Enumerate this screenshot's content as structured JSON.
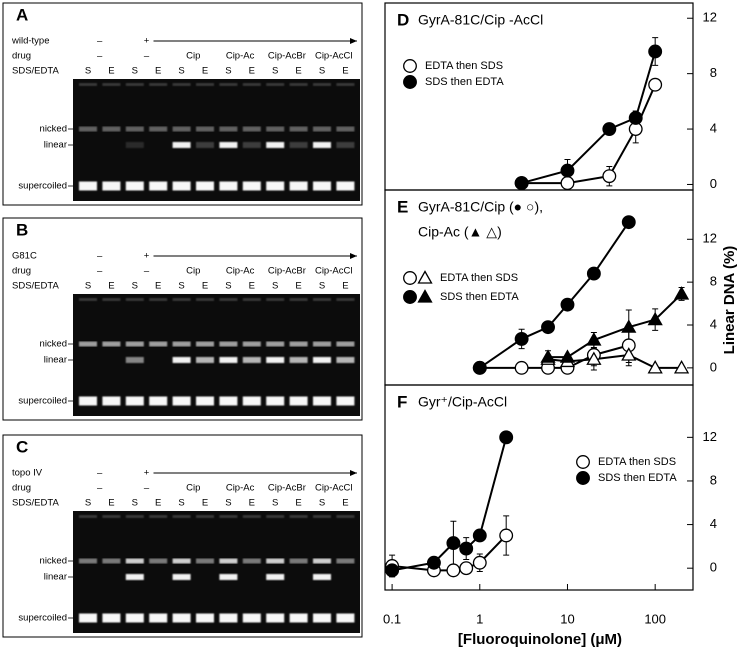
{
  "gels": [
    {
      "letter": "A",
      "enzyme": "wild-type",
      "enzyme_states": [
        "–",
        "+"
      ],
      "drug_label": "drug",
      "treatment_label": "SDS/EDTA",
      "drugs": [
        "–",
        "–",
        "Cip",
        "Cip-Ac",
        "Cip-AcBr",
        "Cip-AcCl"
      ],
      "lanes": [
        "S",
        "E",
        "S",
        "E",
        "S",
        "E",
        "S",
        "E",
        "S",
        "E",
        "S",
        "E"
      ],
      "bands": [
        "nicked",
        "linear",
        "supercoiled"
      ]
    },
    {
      "letter": "B",
      "enzyme": "G81C",
      "enzyme_states": [
        "–",
        "+"
      ],
      "drug_label": "drug",
      "treatment_label": "SDS/EDTA",
      "drugs": [
        "–",
        "–",
        "Cip",
        "Cip-Ac",
        "Cip-AcBr",
        "Cip-AcCl"
      ],
      "lanes": [
        "S",
        "E",
        "S",
        "E",
        "S",
        "E",
        "S",
        "E",
        "S",
        "E",
        "S",
        "E"
      ],
      "bands": [
        "nicked",
        "linear",
        "supercoiled"
      ]
    },
    {
      "letter": "C",
      "enzyme": "topo IV",
      "enzyme_states": [
        "–",
        "+"
      ],
      "drug_label": "drug",
      "treatment_label": "SDS/EDTA",
      "drugs": [
        "–",
        "–",
        "Cip",
        "Cip-Ac",
        "Cip-AcBr",
        "Cip-AcCl"
      ],
      "lanes": [
        "S",
        "E",
        "S",
        "E",
        "S",
        "E",
        "S",
        "E",
        "S",
        "E",
        "S",
        "E"
      ],
      "bands": [
        "nicked",
        "linear",
        "supercoiled"
      ]
    }
  ],
  "shared_axes": {
    "xlabel": "[Fluoroquinolone] (μM)",
    "ylabel": "Linear DNA (%)"
  },
  "chart_data": [
    {
      "type": "line",
      "panel": "D",
      "title": "GyrA-81C/Cip -AcCl",
      "xscale": "log",
      "xlim": [
        0.083,
        270
      ],
      "ylim": [
        -0.4,
        13.1
      ],
      "yticks": [
        0,
        4,
        8,
        12
      ],
      "legend": [
        "EDTA then SDS",
        "SDS then EDTA"
      ],
      "series": [
        {
          "legend": 0,
          "marker": "circle",
          "filled": false,
          "color": "#000000",
          "x": [
            3,
            10,
            30,
            60,
            100
          ],
          "values": [
            0.1,
            0.1,
            0.6,
            4.0,
            7.2
          ],
          "errors": [
            null,
            null,
            0.7,
            1.0,
            null
          ]
        },
        {
          "legend": 1,
          "marker": "circle",
          "filled": true,
          "color": "#000000",
          "x": [
            3,
            10,
            30,
            60,
            100
          ],
          "values": [
            0.1,
            1.0,
            4.0,
            4.8,
            9.6
          ],
          "errors": [
            null,
            0.8,
            null,
            0.5,
            1.0
          ]
        }
      ]
    },
    {
      "type": "line",
      "panel": "E",
      "title": [
        "GyrA-81C/Cip (● ○),",
        "Cip-Ac (▲ △)"
      ],
      "xscale": "log",
      "xlim": [
        0.083,
        270
      ],
      "ylim": [
        -1.6,
        16.6
      ],
      "yticks": [
        0,
        4,
        8,
        12
      ],
      "legend": [
        "EDTA then SDS",
        "SDS then EDTA"
      ],
      "series": [
        {
          "legend": 0,
          "marker": "circle",
          "filled": false,
          "color": "#000000",
          "x": [
            1,
            3,
            6,
            10,
            20,
            50
          ],
          "values": [
            0,
            0,
            0,
            0,
            1.2,
            2.1
          ],
          "errors": [
            null,
            null,
            null,
            null,
            1.0,
            1.6
          ]
        },
        {
          "legend": 0,
          "marker": "triangle",
          "filled": false,
          "color": "#000000",
          "x": [
            6,
            10,
            20,
            50,
            100,
            200
          ],
          "values": [
            0.8,
            0.6,
            0.8,
            1.2,
            0,
            0
          ],
          "errors": [
            0.8,
            null,
            1.0,
            1.0,
            null,
            null
          ]
        },
        {
          "legend": 1,
          "marker": "circle",
          "filled": true,
          "color": "#000000",
          "x": [
            1,
            3,
            6,
            10,
            20,
            50
          ],
          "values": [
            0,
            2.7,
            3.8,
            5.9,
            8.8,
            13.6
          ],
          "errors": [
            null,
            0.9,
            null,
            null,
            null,
            null
          ]
        },
        {
          "legend": 1,
          "marker": "triangle",
          "filled": true,
          "color": "#000000",
          "x": [
            6,
            10,
            20,
            50,
            100,
            200
          ],
          "values": [
            1.0,
            1.0,
            2.6,
            3.8,
            4.5,
            6.9
          ],
          "errors": [
            null,
            null,
            0.7,
            1.6,
            1.0,
            0.6
          ]
        }
      ]
    },
    {
      "type": "line",
      "panel": "F",
      "title": "Gyr⁺/Cip-AcCl",
      "xscale": "log",
      "xlim": [
        0.083,
        270
      ],
      "ylim": [
        -2,
        16.8
      ],
      "yticks": [
        0,
        4,
        8,
        12
      ],
      "xticks": [
        0.1,
        1,
        10,
        100
      ],
      "legend": [
        "EDTA then SDS",
        "SDS then EDTA"
      ],
      "series": [
        {
          "legend": 0,
          "marker": "circle",
          "filled": false,
          "color": "#000000",
          "x": [
            0.1,
            0.3,
            0.5,
            0.7,
            1,
            2
          ],
          "values": [
            0.2,
            -0.2,
            -0.2,
            0,
            0.5,
            3.0
          ],
          "errors": [
            1.0,
            null,
            null,
            null,
            0.8,
            1.8
          ]
        },
        {
          "legend": 1,
          "marker": "circle",
          "filled": true,
          "color": "#000000",
          "x": [
            0.1,
            0.3,
            0.5,
            0.7,
            1,
            2
          ],
          "values": [
            -0.2,
            0.5,
            2.3,
            1.8,
            3.0,
            12.0
          ],
          "errors": [
            null,
            null,
            2.0,
            1.0,
            null,
            null
          ]
        }
      ]
    }
  ]
}
